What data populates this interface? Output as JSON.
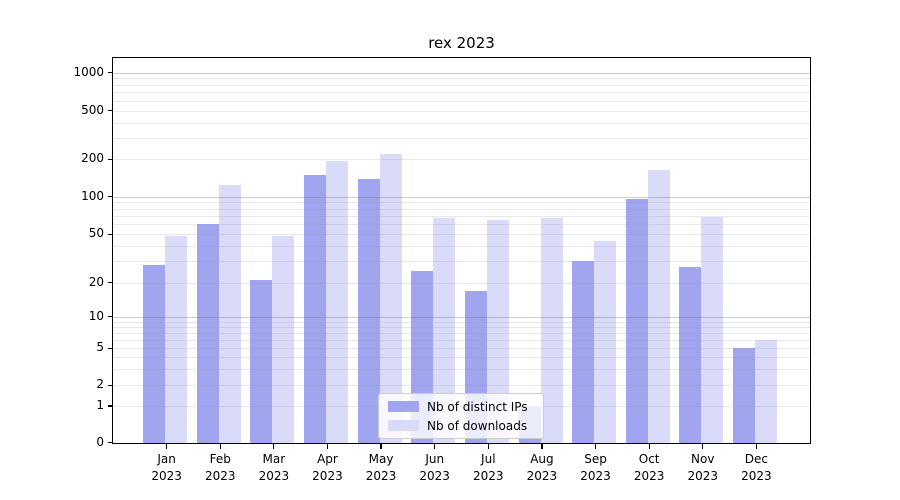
{
  "chart": {
    "title": "rex 2023",
    "legend": {
      "items": [
        {
          "label": "Nb of distinct IPs",
          "color": "#a1a5f0"
        },
        {
          "label": "Nb of downloads",
          "color": "#d9dbf8"
        }
      ]
    }
  },
  "chart_data": {
    "type": "bar",
    "title": "rex 2023",
    "categories": [
      "Jan 2023",
      "Feb 2023",
      "Mar 2023",
      "Apr 2023",
      "May 2023",
      "Jun 2023",
      "Jul 2023",
      "Aug 2023",
      "Sep 2023",
      "Oct 2023",
      "Nov 2023",
      "Dec 2023"
    ],
    "series": [
      {
        "name": "Nb of distinct IPs",
        "color": "#a1a5f0",
        "values": [
          28,
          60,
          21,
          150,
          140,
          25,
          17,
          1,
          30,
          95,
          27,
          5
        ]
      },
      {
        "name": "Nb of downloads",
        "color": "#d9dbf8",
        "values": [
          48,
          125,
          48,
          195,
          220,
          68,
          65,
          68,
          44,
          165,
          69,
          6
        ]
      }
    ],
    "yticks": [
      0,
      1,
      2,
      5,
      10,
      20,
      50,
      100,
      200,
      500,
      1000
    ],
    "yscale": "symlog",
    "ylim": [
      0,
      1200
    ],
    "xlabel": "",
    "ylabel": "",
    "grid": true,
    "legend_position": "lower center"
  }
}
